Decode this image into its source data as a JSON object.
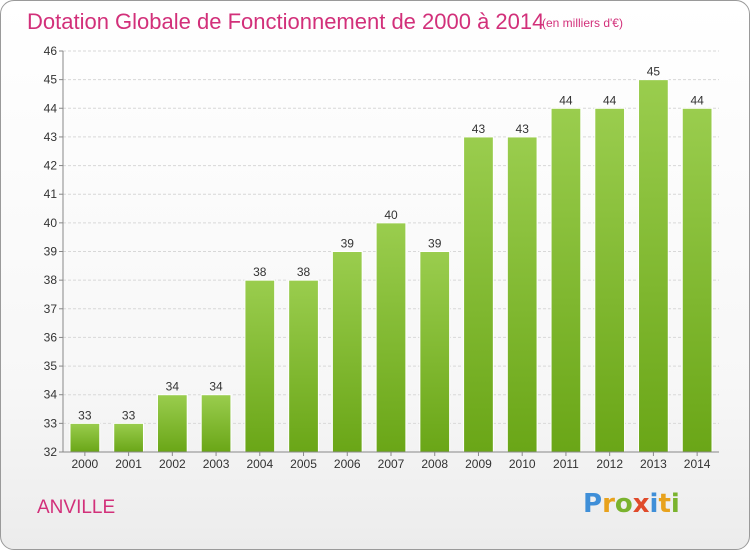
{
  "header": {
    "title": "Dotation Globale de Fonctionnement de 2000 à 2014",
    "subtitle": "(en milliers d'€)"
  },
  "footer": {
    "commune": "ANVILLE",
    "logo": "Proxiti"
  },
  "colors": {
    "title": "#d2307a",
    "bar_light": "#9acd4e",
    "bar_dark": "#6aa617",
    "grid": "#d8d8d8"
  },
  "chart_data": {
    "type": "bar",
    "title": "Dotation Globale de Fonctionnement de 2000 à 2014",
    "subtitle": "(en milliers d'€)",
    "categories": [
      "2000",
      "2001",
      "2002",
      "2003",
      "2004",
      "2005",
      "2006",
      "2007",
      "2008",
      "2009",
      "2010",
      "2011",
      "2012",
      "2013",
      "2014"
    ],
    "values": [
      33,
      33,
      34,
      34,
      38,
      38,
      39,
      40,
      39,
      43,
      43,
      44,
      44,
      45,
      44
    ],
    "ylim": [
      32,
      46
    ],
    "yticks": [
      32,
      33,
      34,
      35,
      36,
      37,
      38,
      39,
      40,
      41,
      42,
      43,
      44,
      45,
      46
    ],
    "grid": true,
    "xlabel": "",
    "ylabel": ""
  }
}
